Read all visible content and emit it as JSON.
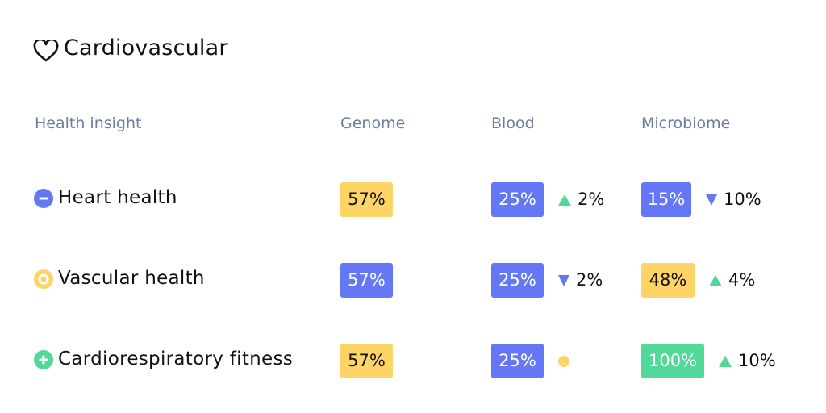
{
  "title": "Cardiovascular",
  "title_icon": "heart-icon",
  "headers": [
    "Health insight",
    "Genome",
    "Blood",
    "Microbiome"
  ],
  "colors": {
    "blue": "#6478f5",
    "yellow": "#ffd466",
    "green": "#52d898",
    "header": "#6e7ba3"
  },
  "rows": [
    {
      "label": "Heart health",
      "status": "minus",
      "status_color": "#6478f5",
      "genome": {
        "value": "57%",
        "color": "yellow"
      },
      "blood": {
        "value": "25%",
        "color": "blue",
        "trend": "up",
        "delta": "2%"
      },
      "microbiome": {
        "value": "15%",
        "color": "blue",
        "trend": "down",
        "delta": "10%"
      }
    },
    {
      "label": "Vascular health",
      "status": "neutral",
      "status_color": "#ffd466",
      "genome": {
        "value": "57%",
        "color": "blue"
      },
      "blood": {
        "value": "25%",
        "color": "blue",
        "trend": "down",
        "delta": "2%"
      },
      "microbiome": {
        "value": "48%",
        "color": "yellow",
        "trend": "up",
        "delta": "4%"
      }
    },
    {
      "label": "Cardiorespiratory fitness",
      "status": "plus",
      "status_color": "#52d898",
      "genome": {
        "value": "57%",
        "color": "yellow"
      },
      "blood": {
        "value": "25%",
        "color": "blue",
        "trend": "neutral",
        "delta": ""
      },
      "microbiome": {
        "value": "100%",
        "color": "green",
        "trend": "up",
        "delta": "10%"
      }
    }
  ]
}
